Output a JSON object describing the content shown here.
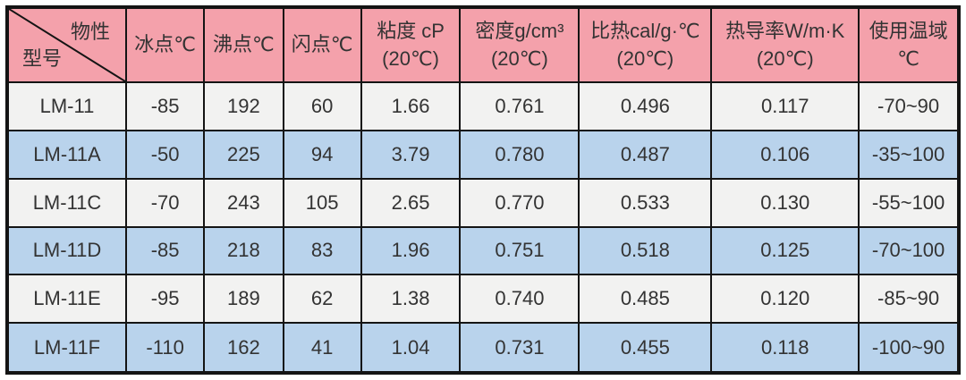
{
  "colors": {
    "header_bg": "#f4a1ab",
    "row_bg": "#f2f2f1",
    "row_alt_bg": "#b9d3ec",
    "border_color": "#141414",
    "text_color": "#333333"
  },
  "table": {
    "corner_top": "物性",
    "corner_bottom": "型号",
    "columns": [
      {
        "line1": "冰点℃",
        "line2": ""
      },
      {
        "line1": "沸点℃",
        "line2": ""
      },
      {
        "line1": "闪点℃",
        "line2": ""
      },
      {
        "line1": "粘度 cP",
        "line2": "(20℃)"
      },
      {
        "line1": "密度g/cm³",
        "line2": "(20℃)"
      },
      {
        "line1": "比热cal/g·℃",
        "line2": "(20℃)"
      },
      {
        "line1": "热导率W/m·K",
        "line2": "(20℃)"
      },
      {
        "line1": "使用温域",
        "line2": "℃"
      }
    ],
    "rows": [
      {
        "model": "LM-11",
        "values": [
          "-85",
          "192",
          "60",
          "1.66",
          "0.761",
          "0.496",
          "0.117",
          "-70~90"
        ]
      },
      {
        "model": "LM-11A",
        "values": [
          "-50",
          "225",
          "94",
          "3.79",
          "0.780",
          "0.487",
          "0.106",
          "-35~100"
        ]
      },
      {
        "model": "LM-11C",
        "values": [
          "-70",
          "243",
          "105",
          "2.65",
          "0.770",
          "0.533",
          "0.130",
          "-55~100"
        ]
      },
      {
        "model": "LM-11D",
        "values": [
          "-85",
          "218",
          "83",
          "1.96",
          "0.751",
          "0.518",
          "0.125",
          "-70~100"
        ]
      },
      {
        "model": "LM-11E",
        "values": [
          "-95",
          "189",
          "62",
          "1.38",
          "0.740",
          "0.485",
          "0.120",
          "-85~90"
        ]
      },
      {
        "model": "LM-11F",
        "values": [
          "-110",
          "162",
          "41",
          "1.04",
          "0.731",
          "0.455",
          "0.118",
          "-100~90"
        ]
      }
    ]
  },
  "chart_data": {
    "type": "table",
    "title": "",
    "columns": [
      "型号",
      "冰点℃",
      "沸点℃",
      "闪点℃",
      "粘度 cP (20℃)",
      "密度g/cm³ (20℃)",
      "比热cal/g·℃ (20℃)",
      "热导率W/m·K (20℃)",
      "使用温域℃"
    ],
    "rows": [
      [
        "LM-11",
        -85,
        192,
        60,
        1.66,
        0.761,
        0.496,
        0.117,
        "-70~90"
      ],
      [
        "LM-11A",
        -50,
        225,
        94,
        3.79,
        0.78,
        0.487,
        0.106,
        "-35~100"
      ],
      [
        "LM-11C",
        -70,
        243,
        105,
        2.65,
        0.77,
        0.533,
        0.13,
        "-55~100"
      ],
      [
        "LM-11D",
        -85,
        218,
        83,
        1.96,
        0.751,
        0.518,
        0.125,
        "-70~100"
      ],
      [
        "LM-11E",
        -95,
        189,
        62,
        1.38,
        0.74,
        0.485,
        0.12,
        "-85~90"
      ],
      [
        "LM-11F",
        -110,
        162,
        41,
        1.04,
        0.731,
        0.455,
        0.118,
        "-100~90"
      ]
    ]
  }
}
